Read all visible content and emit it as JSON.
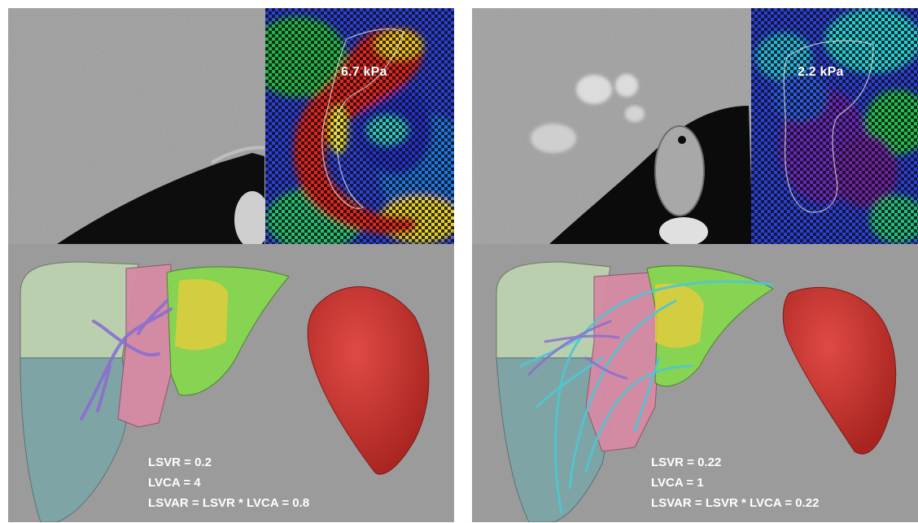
{
  "left_panel": {
    "stiffness_label": "6.7 kPa",
    "metrics": [
      "LSVR = 0.2",
      "LVCA = 4",
      "LSVAR = LSVR * LVCA = 0.8"
    ]
  },
  "right_panel": {
    "stiffness_label": "2.2 kPa",
    "metrics": [
      "LSVR = 0.22",
      "LVCA = 1",
      "LSVAR = LSVR * LVCA =  0.22"
    ]
  },
  "colors": {
    "render_background": "#9b9b9b",
    "spleen": "#c9302c",
    "liver_segment_light_green": "#b9cfae",
    "liver_segment_teal": "#7fa4a6",
    "liver_segment_pink": "#d68aa4",
    "liver_segment_green": "#86d64f",
    "liver_segment_yellow": "#e1cc3c",
    "vessels_purple": "#8a6fd0",
    "vessels_cyan": "#4fc7d2"
  }
}
